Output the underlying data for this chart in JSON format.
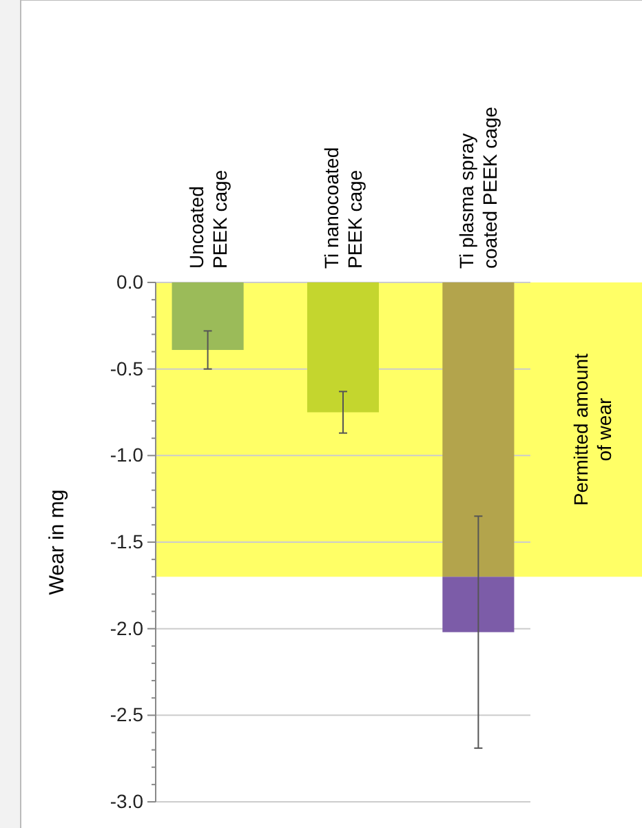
{
  "chart_data": {
    "type": "bar",
    "stacked": true,
    "ylabel": "Wear in mg",
    "categories": [
      "Uncoated PEEK cage",
      "Ti nanocoated PEEK cage",
      "Ti plasma spray coated PEEK cage"
    ],
    "series": [
      {
        "colors": [
          "#9bbb59",
          "#c4d62e",
          "#b3a44c"
        ],
        "values": [
          -0.39,
          -0.75,
          -1.7
        ],
        "errors": [
          0.11,
          0.12,
          null
        ]
      },
      {
        "color": "#7c5ca8",
        "values": [
          null,
          null,
          -0.32
        ],
        "errors": [
          null,
          null,
          0.67
        ]
      }
    ],
    "ylim": [
      -3.0,
      0
    ],
    "yticks": [
      {
        "value": 0,
        "label": "0.0"
      },
      {
        "value": -0.1,
        "label": null
      },
      {
        "value": -0.2,
        "label": null
      },
      {
        "value": -0.3,
        "label": null
      },
      {
        "value": -0.4,
        "label": null
      },
      -0.5,
      {
        "value": -0.6,
        "label": null
      },
      {
        "value": -0.7,
        "label": null
      },
      {
        "value": -0.8,
        "label": null
      },
      {
        "value": -0.9,
        "label": null
      },
      {
        "value": -1,
        "label": "-1.0"
      },
      {
        "value": -1.1,
        "label": null
      },
      {
        "value": -1.2,
        "label": null
      },
      {
        "value": -1.3,
        "label": null
      },
      {
        "value": -1.4,
        "label": null
      },
      -1.5,
      {
        "value": -1.6,
        "label": null
      },
      {
        "value": -1.7,
        "label": null
      },
      {
        "value": -1.8,
        "label": null
      },
      {
        "value": -1.9,
        "label": null
      },
      {
        "value": -2,
        "label": "-2.0"
      },
      {
        "value": -2.1,
        "label": null
      },
      {
        "value": -2.2,
        "label": null
      },
      {
        "value": -2.3,
        "label": null
      },
      {
        "value": -2.4,
        "label": null
      },
      -2.5,
      {
        "value": -2.6,
        "label": null
      },
      {
        "value": -2.7,
        "label": null
      },
      {
        "value": -2.8,
        "label": null
      },
      {
        "value": -2.9,
        "label": null
      },
      {
        "value": -3,
        "label": "-3.0"
      }
    ],
    "grid": "y",
    "bands": [
      {
        "axis": "y",
        "from": 0,
        "to": -1.7,
        "label": "Permitted amount of wear",
        "color": "#ffff66"
      }
    ]
  }
}
